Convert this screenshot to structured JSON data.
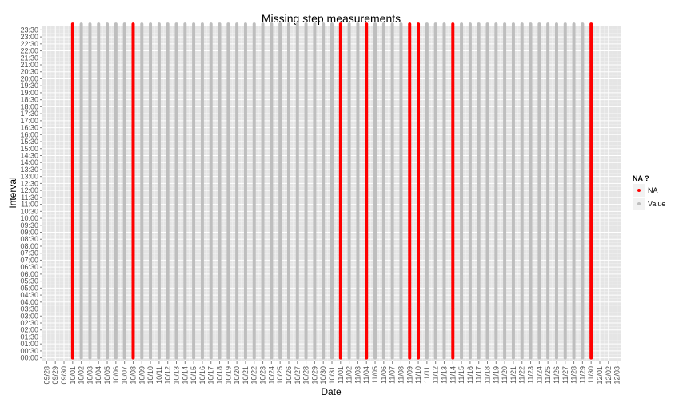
{
  "chart_data": {
    "type": "scatter",
    "title": "Missing step measurements",
    "xlabel": "Date",
    "ylabel": "Interval",
    "x_ticks": [
      "09/28",
      "09/29",
      "09/30",
      "10/01",
      "10/02",
      "10/03",
      "10/04",
      "10/05",
      "10/06",
      "10/07",
      "10/08",
      "10/09",
      "10/10",
      "10/11",
      "10/12",
      "10/13",
      "10/14",
      "10/15",
      "10/16",
      "10/17",
      "10/18",
      "10/19",
      "10/20",
      "10/21",
      "10/22",
      "10/23",
      "10/24",
      "10/25",
      "10/26",
      "10/27",
      "10/28",
      "10/29",
      "10/30",
      "10/31",
      "11/01",
      "11/02",
      "11/03",
      "11/04",
      "11/05",
      "11/06",
      "11/07",
      "11/08",
      "11/09",
      "11/10",
      "11/11",
      "11/12",
      "11/13",
      "11/14",
      "11/15",
      "11/16",
      "11/17",
      "11/18",
      "11/19",
      "11/20",
      "11/21",
      "11/22",
      "11/23",
      "11/24",
      "11/25",
      "11/26",
      "11/27",
      "11/28",
      "11/29",
      "11/30",
      "12/01",
      "12/02",
      "12/03"
    ],
    "y_ticks": [
      "00:00",
      "00:30",
      "01:00",
      "01:30",
      "02:00",
      "02:30",
      "03:00",
      "03:30",
      "04:00",
      "04:30",
      "05:00",
      "05:30",
      "06:00",
      "06:30",
      "07:00",
      "07:30",
      "08:00",
      "08:30",
      "09:00",
      "09:30",
      "10:00",
      "10:30",
      "11:00",
      "11:30",
      "12:00",
      "12:30",
      "13:00",
      "13:30",
      "14:00",
      "14:30",
      "15:00",
      "15:30",
      "16:00",
      "16:30",
      "17:00",
      "17:30",
      "18:00",
      "18:30",
      "19:00",
      "19:30",
      "20:00",
      "20:30",
      "21:00",
      "21:30",
      "22:00",
      "22:30",
      "23:00",
      "23:30"
    ],
    "date_range": [
      "10/01",
      "11/30"
    ],
    "interval_range": [
      "00:00",
      "23:55"
    ],
    "interval_step_minutes": 5,
    "na_dates": [
      "10/01",
      "10/08",
      "11/01",
      "11/04",
      "11/09",
      "11/10",
      "11/14",
      "11/30"
    ],
    "series": [
      {
        "name": "NA",
        "color": "#ff0000"
      },
      {
        "name": "Value",
        "color": "#bebebe"
      }
    ],
    "legend": {
      "title": "NA ?",
      "position": "right"
    },
    "grid": true,
    "panel_background": "#e5e5e5",
    "grid_color": "#ffffff"
  }
}
